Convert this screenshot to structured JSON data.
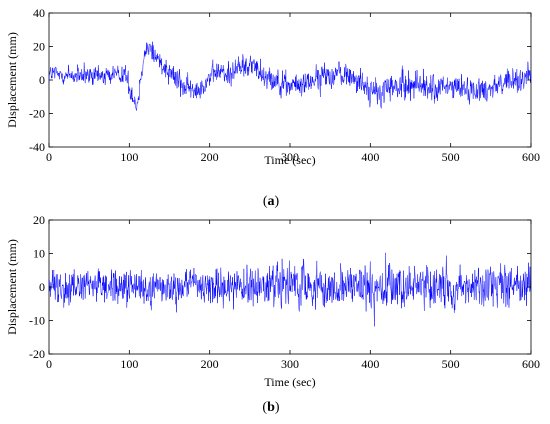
{
  "chart_data": [
    {
      "type": "line",
      "caption": "(a)",
      "caption_letter": "a",
      "xlabel": "Time (sec)",
      "ylabel": "Displacement (mm)",
      "xlim": [
        0,
        600
      ],
      "ylim": [
        -40,
        40
      ],
      "xticks": [
        0,
        100,
        200,
        300,
        400,
        500,
        600
      ],
      "yticks": [
        -40,
        -20,
        0,
        20,
        40
      ],
      "grid": false,
      "line_color": "#0000ff",
      "series": [
        {
          "t": [
            0,
            20,
            40,
            60,
            80,
            95,
            100,
            105,
            110,
            115,
            120,
            125,
            130,
            140,
            150,
            160,
            170,
            180,
            190,
            200,
            210,
            220,
            230,
            240,
            250,
            260,
            270,
            280,
            290,
            300,
            320,
            340,
            360,
            380,
            400,
            410,
            420,
            440,
            460,
            480,
            500,
            520,
            540,
            560,
            580,
            590,
            600
          ],
          "y": [
            4,
            3,
            2,
            2,
            3,
            4,
            -5,
            -10,
            -16,
            5,
            18,
            20,
            16,
            10,
            6,
            0,
            -4,
            -7,
            -4,
            2,
            5,
            3,
            6,
            8,
            10,
            6,
            3,
            1,
            -2,
            -4,
            -2,
            2,
            4,
            2,
            -6,
            -9,
            -5,
            -4,
            -2,
            -6,
            -4,
            -5,
            -6,
            -2,
            -1,
            1,
            4
          ],
          "amplitude": [
            5,
            5,
            5,
            5,
            5,
            5,
            5,
            5,
            5,
            5,
            6,
            6,
            6,
            6,
            6,
            6,
            6,
            5,
            5,
            5,
            6,
            6,
            6,
            6,
            6,
            6,
            6,
            6,
            6,
            5,
            6,
            6,
            6,
            6,
            7,
            7,
            7,
            7,
            7,
            7,
            6,
            6,
            6,
            6,
            6,
            6,
            6
          ]
        }
      ]
    },
    {
      "type": "line",
      "caption": "(b)",
      "caption_letter": "b",
      "xlabel": "Time (sec)",
      "ylabel": "Displacement (mm)",
      "xlim": [
        0,
        600
      ],
      "ylim": [
        -20,
        20
      ],
      "xticks": [
        0,
        100,
        200,
        300,
        400,
        500,
        600
      ],
      "yticks": [
        -20,
        -10,
        0,
        10,
        20
      ],
      "grid": false,
      "line_color": "#0000ff",
      "series": [
        {
          "t": [
            0,
            100,
            200,
            300,
            400,
            500,
            600
          ],
          "y": [
            0,
            0,
            0,
            0,
            0,
            0,
            0
          ],
          "amplitude": [
            4,
            4.5,
            4.5,
            5,
            5,
            5,
            4.5
          ]
        }
      ]
    }
  ]
}
